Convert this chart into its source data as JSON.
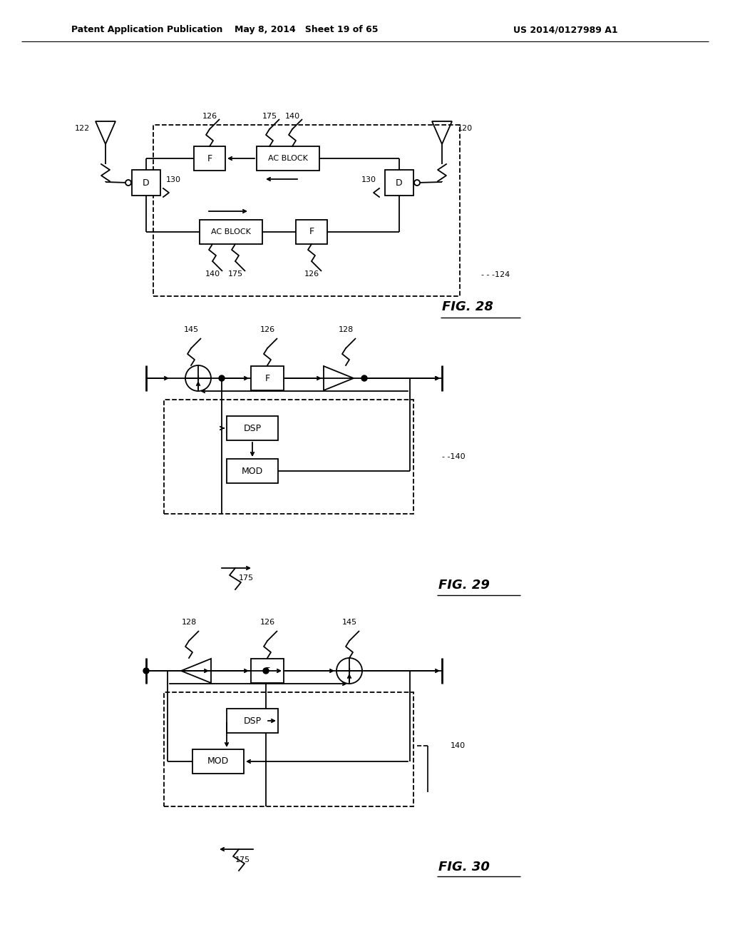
{
  "header_left": "Patent Application Publication",
  "header_mid": "May 8, 2014   Sheet 19 of 65",
  "header_right": "US 2014/0127989 A1",
  "fig28_label": "FIG. 28",
  "fig29_label": "FIG. 29",
  "fig30_label": "FIG. 30",
  "bg_color": "#ffffff"
}
